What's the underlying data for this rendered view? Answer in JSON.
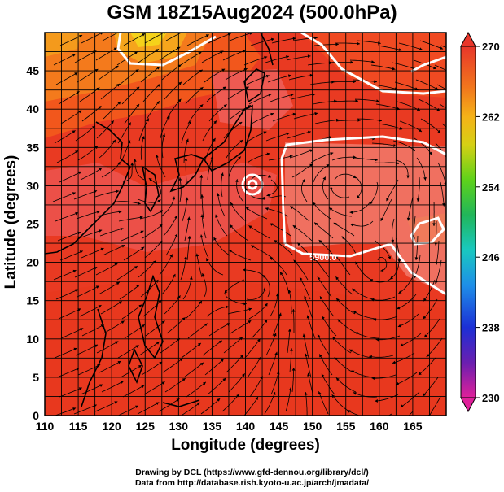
{
  "title": "GSM 18Z15Aug2024 (500.0hPa)",
  "axes": {
    "xlabel": "Longitude (degrees)",
    "ylabel": "Latitude  (degrees)",
    "xticks": [
      "110",
      "115",
      "120",
      "125",
      "130",
      "135",
      "140",
      "145",
      "150",
      "155",
      "160",
      "165"
    ],
    "yticks": [
      "0",
      "5",
      "10",
      "15",
      "20",
      "25",
      "30",
      "35",
      "40",
      "45"
    ],
    "xlim": [
      110,
      170
    ],
    "ylim": [
      0,
      50
    ]
  },
  "colorbar": {
    "ticks": [
      "270",
      "262",
      "254",
      "246",
      "238",
      "230"
    ],
    "range": [
      230,
      270
    ],
    "colors": [
      "#e0209a",
      "#6a1fb0",
      "#1c2fd6",
      "#1e8fe8",
      "#19c8c0",
      "#21b65a",
      "#5ed21a",
      "#d6d014",
      "#f5b218",
      "#f2781c",
      "#ee4a1e",
      "#e8362a"
    ]
  },
  "contour_label": "5900.0",
  "footer": {
    "line1": "Drawing by DCL (https://www.gfd-dennou.org/library/dcl/)",
    "line2": "Data from http://database.rish.kyoto-u.ac.jp/arch/jmadata/"
  },
  "colors": {
    "field_main": "#e93a22",
    "field_warm": "#f2571c",
    "field_high": "#f07a5a",
    "cold_patch": "#f7a81e",
    "contour": "#ffffff"
  }
}
